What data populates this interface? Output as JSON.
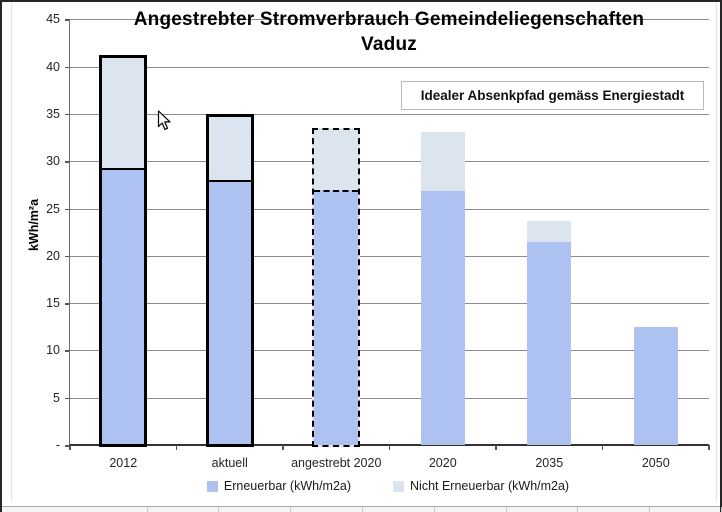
{
  "chart_data": {
    "type": "bar",
    "stacked": true,
    "title": "Angestrebter Stromverbrauch Gemeindeliegenschaften Vaduz",
    "title_line1": "Angestrebter Stromverbrauch Gemeindeliegenschaften",
    "title_line2": "Vaduz",
    "annotation": "Idealer Absenkpfad gemäss Energiestadt",
    "ylabel": "kWh/m²a",
    "ylim": [
      0,
      45
    ],
    "grid": true,
    "legend_position": "bottom",
    "yticks": [
      {
        "label": "45",
        "value": 45
      },
      {
        "label": "40",
        "value": 40
      },
      {
        "label": "35",
        "value": 35
      },
      {
        "label": "30",
        "value": 30
      },
      {
        "label": "25",
        "value": 25
      },
      {
        "label": "20",
        "value": 20
      },
      {
        "label": "15",
        "value": 15
      },
      {
        "label": "10",
        "value": 10
      },
      {
        "label": "5",
        "value": 5
      },
      {
        "label": "-",
        "value": 0
      }
    ],
    "categories": [
      "2012",
      "aktuell",
      "angestrebt 2020",
      "2020",
      "2035",
      "2050"
    ],
    "series": [
      {
        "name": "Erneuerbar (kWh/m2a)",
        "color": "#aec2f1",
        "values": [
          29.0,
          27.7,
          26.7,
          26.9,
          21.5,
          12.5
        ]
      },
      {
        "name": "Nicht Erneuerbar (kWh/m2a)",
        "color": "#dce4f0",
        "values": [
          12.0,
          7.1,
          6.6,
          6.2,
          2.2,
          0
        ]
      }
    ],
    "bar_totals": [
      41.0,
      34.8,
      33.3,
      33.1,
      23.7,
      12.5
    ],
    "bar_outline_styles": [
      "solid",
      "solid",
      "dashed",
      "none",
      "none",
      "none"
    ],
    "outline_color": "#000000",
    "gridline_color": "#8c8c8c"
  }
}
